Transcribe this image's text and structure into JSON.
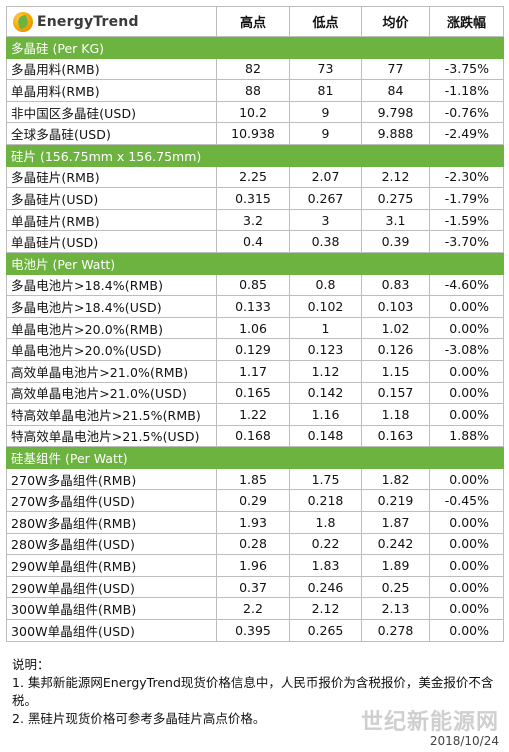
{
  "header": {
    "logo_text": "EnergyTrend",
    "cols": [
      "高点",
      "低点",
      "均价",
      "涨跌幅"
    ]
  },
  "sections": [
    {
      "title": "多晶硅 (Per KG)",
      "rows": [
        {
          "name": "多晶用料(RMB)",
          "high": "82",
          "low": "73",
          "avg": "77",
          "chg": "-3.75%"
        },
        {
          "name": "单晶用料(RMB)",
          "high": "88",
          "low": "81",
          "avg": "84",
          "chg": "-1.18%"
        },
        {
          "name": "非中国区多晶硅(USD)",
          "high": "10.2",
          "low": "9",
          "avg": "9.798",
          "chg": "-0.76%"
        },
        {
          "name": "全球多晶硅(USD)",
          "high": "10.938",
          "low": "9",
          "avg": "9.888",
          "chg": "-2.49%"
        }
      ]
    },
    {
      "title": "硅片 (156.75mm x 156.75mm)",
      "rows": [
        {
          "name": "多晶硅片(RMB)",
          "high": "2.25",
          "low": "2.07",
          "avg": "2.12",
          "chg": "-2.30%"
        },
        {
          "name": "多晶硅片(USD)",
          "high": "0.315",
          "low": "0.267",
          "avg": "0.275",
          "chg": "-1.79%"
        },
        {
          "name": "单晶硅片(RMB)",
          "high": "3.2",
          "low": "3",
          "avg": "3.1",
          "chg": "-1.59%"
        },
        {
          "name": "单晶硅片(USD)",
          "high": "0.4",
          "low": "0.38",
          "avg": "0.39",
          "chg": "-3.70%"
        }
      ]
    },
    {
      "title": "电池片 (Per Watt)",
      "rows": [
        {
          "name": "多晶电池片>18.4%(RMB)",
          "high": "0.85",
          "low": "0.8",
          "avg": "0.83",
          "chg": "-4.60%"
        },
        {
          "name": "多晶电池片>18.4%(USD)",
          "high": "0.133",
          "low": "0.102",
          "avg": "0.103",
          "chg": "0.00%"
        },
        {
          "name": "单晶电池片>20.0%(RMB)",
          "high": "1.06",
          "low": "1",
          "avg": "1.02",
          "chg": "0.00%"
        },
        {
          "name": "单晶电池片>20.0%(USD)",
          "high": "0.129",
          "low": "0.123",
          "avg": "0.126",
          "chg": "-3.08%"
        },
        {
          "name": "高效单晶电池片>21.0%(RMB)",
          "high": "1.17",
          "low": "1.12",
          "avg": "1.15",
          "chg": "0.00%"
        },
        {
          "name": "高效单晶电池片>21.0%(USD)",
          "high": "0.165",
          "low": "0.142",
          "avg": "0.157",
          "chg": "0.00%"
        },
        {
          "name": "特高效单晶电池片>21.5%(RMB)",
          "high": "1.22",
          "low": "1.16",
          "avg": "1.18",
          "chg": "0.00%"
        },
        {
          "name": "特高效单晶电池片>21.5%(USD)",
          "high": "0.168",
          "low": "0.148",
          "avg": "0.163",
          "chg": "1.88%"
        }
      ]
    },
    {
      "title": "硅基组件 (Per Watt)",
      "rows": [
        {
          "name": "270W多晶组件(RMB)",
          "high": "1.85",
          "low": "1.75",
          "avg": "1.82",
          "chg": "0.00%"
        },
        {
          "name": "270W多晶组件(USD)",
          "high": "0.29",
          "low": "0.218",
          "avg": "0.219",
          "chg": "-0.45%"
        },
        {
          "name": "280W多晶组件(RMB)",
          "high": "1.93",
          "low": "1.8",
          "avg": "1.87",
          "chg": "0.00%"
        },
        {
          "name": "280W多晶组件(USD)",
          "high": "0.28",
          "low": "0.22",
          "avg": "0.242",
          "chg": "0.00%"
        },
        {
          "name": "290W单晶组件(RMB)",
          "high": "1.96",
          "low": "1.83",
          "avg": "1.89",
          "chg": "0.00%"
        },
        {
          "name": "290W单晶组件(USD)",
          "high": "0.37",
          "low": "0.246",
          "avg": "0.25",
          "chg": "0.00%"
        },
        {
          "name": "300W单晶组件(RMB)",
          "high": "2.2",
          "low": "2.12",
          "avg": "2.13",
          "chg": "0.00%"
        },
        {
          "name": "300W单晶组件(USD)",
          "high": "0.395",
          "low": "0.265",
          "avg": "0.278",
          "chg": "0.00%"
        }
      ]
    }
  ],
  "notes": {
    "heading": "说明：",
    "lines": [
      "1. 集邦新能源网EnergyTrend现货价格信息中，人民币报价为含税报价，美金报价不含税。",
      "2. 黑硅片现货价格可参考多晶硅片高点价格。"
    ]
  },
  "watermark": "世纪新能源网",
  "date": "2018/10/24",
  "colors": {
    "section_bg": "#6db33f",
    "border": "#bdbdbd"
  }
}
